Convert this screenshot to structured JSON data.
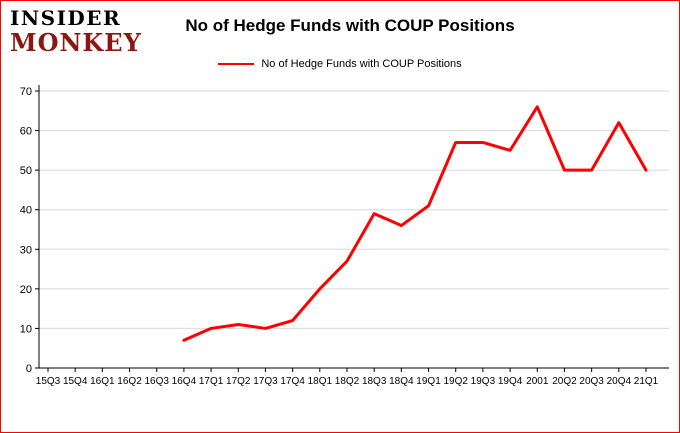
{
  "logo": {
    "line1": "INSIDER",
    "line2": "MONKEY"
  },
  "title": "No of Hedge Funds with COUP Positions",
  "legend": {
    "label": "No of Hedge Funds with COUP Positions"
  },
  "colors": {
    "frame_border": "#fe0000",
    "series_line": "#fe0000",
    "logo_top": "#000000",
    "logo_bottom": "#8b1712",
    "gridline": "#d8d8d8",
    "axis": "#000000",
    "tick_label": "#000000"
  },
  "chart_data": {
    "type": "line",
    "title": "No of Hedge Funds with COUP Positions",
    "xlabel": "",
    "ylabel": "",
    "ylim": [
      0,
      70
    ],
    "yticks": [
      0,
      10,
      20,
      30,
      40,
      50,
      60,
      70
    ],
    "grid": true,
    "legend_position": "top",
    "categories": [
      "15Q3",
      "15Q4",
      "16Q1",
      "16Q2",
      "16Q3",
      "16Q4",
      "17Q1",
      "17Q2",
      "17Q3",
      "17Q4",
      "18Q1",
      "18Q2",
      "18Q3",
      "18Q4",
      "19Q1",
      "19Q2",
      "19Q3",
      "19Q4",
      "2001",
      "20Q2",
      "20Q3",
      "20Q4",
      "21Q1"
    ],
    "series": [
      {
        "name": "No of Hedge Funds with COUP Positions",
        "color": "#fe0000",
        "values": [
          null,
          null,
          null,
          null,
          null,
          7,
          10,
          11,
          10,
          12,
          20,
          27,
          39,
          36,
          41,
          57,
          57,
          55,
          66,
          50,
          50,
          62,
          50
        ]
      }
    ]
  }
}
